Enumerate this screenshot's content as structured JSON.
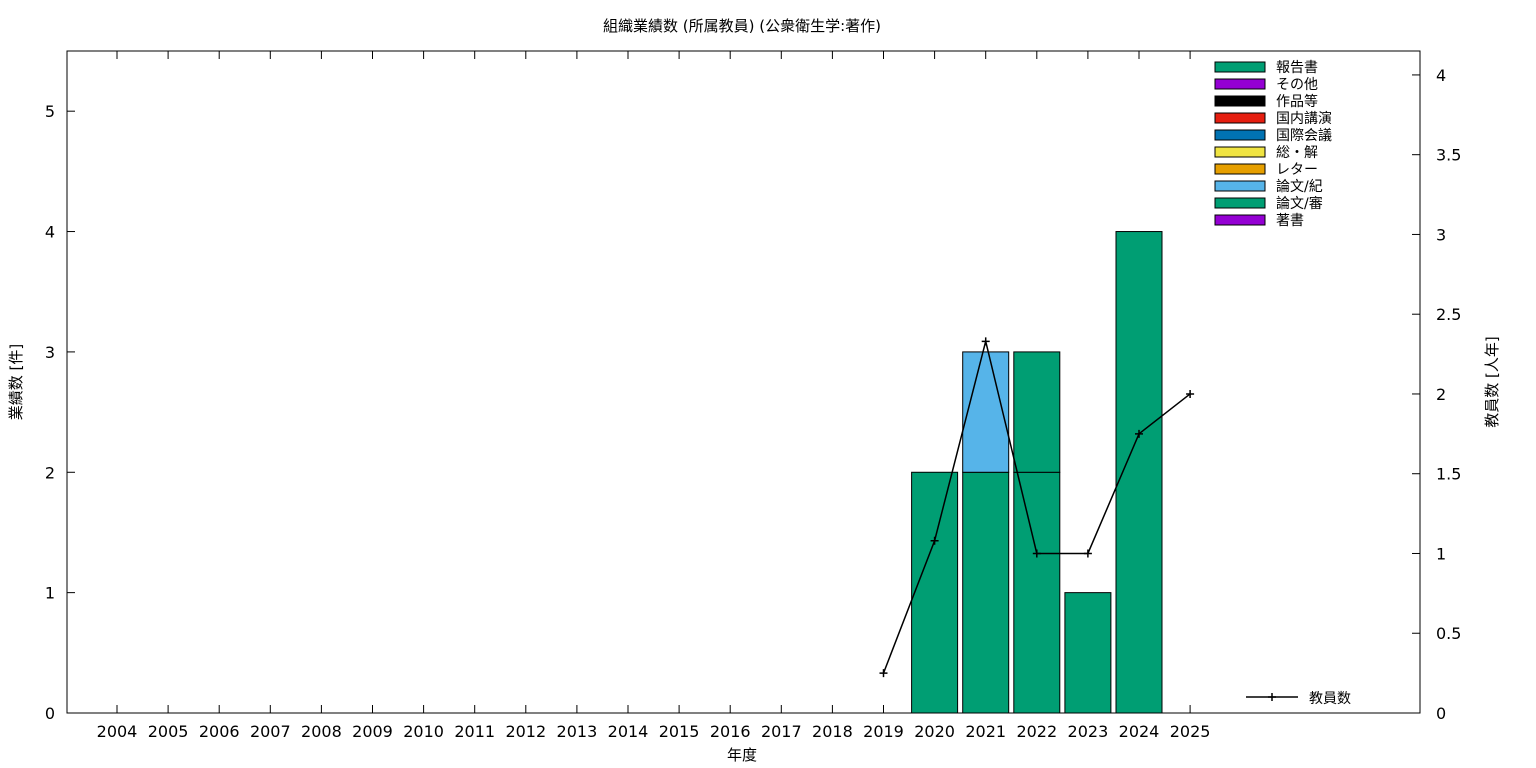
{
  "chart_data": {
    "type": "bar",
    "title": "組織業績数 (所属教員) (公衆衛生学:著作)",
    "xlabel": "年度",
    "ylabel": "業績数 [件]",
    "y2label": "教員数 [人年]",
    "categories": [
      "2004",
      "2005",
      "2006",
      "2007",
      "2008",
      "2009",
      "2010",
      "2011",
      "2012",
      "2013",
      "2014",
      "2015",
      "2016",
      "2017",
      "2018",
      "2019",
      "2020",
      "2021",
      "2022",
      "2023",
      "2024",
      "2025"
    ],
    "ylim": [
      0,
      5.5
    ],
    "yticks": [
      0,
      1,
      2,
      3,
      4,
      5
    ],
    "y2lim": [
      0,
      4.15
    ],
    "y2ticks": [
      "0",
      "0.5",
      "1",
      "1.5",
      "2",
      "2.5",
      "3",
      "3.5",
      "4"
    ],
    "stacked": true,
    "legend_position": "top-right",
    "series": [
      {
        "name": "論文/審",
        "color": "#009e73",
        "values": [
          0,
          0,
          0,
          0,
          0,
          0,
          0,
          0,
          0,
          0,
          0,
          0,
          0,
          0,
          0,
          0,
          2,
          2,
          2,
          1,
          4,
          0
        ]
      },
      {
        "name": "論文/紀",
        "color": "#56b4e9",
        "values": [
          0,
          0,
          0,
          0,
          0,
          0,
          0,
          0,
          0,
          0,
          0,
          0,
          0,
          0,
          0,
          0,
          0,
          1,
          0,
          0,
          0,
          0
        ]
      },
      {
        "name": "報告書",
        "color": "#009e73",
        "values": [
          0,
          0,
          0,
          0,
          0,
          0,
          0,
          0,
          0,
          0,
          0,
          0,
          0,
          0,
          0,
          0,
          0,
          0,
          1,
          0,
          0,
          0
        ]
      }
    ],
    "legend": [
      {
        "name": "報告書",
        "color": "#009e73"
      },
      {
        "name": "その他",
        "color": "#9400d3"
      },
      {
        "name": "作品等",
        "color": "#000000"
      },
      {
        "name": "国内講演",
        "color": "#e51e10"
      },
      {
        "name": "国際会議",
        "color": "#0072b2"
      },
      {
        "name": "総・解",
        "color": "#f0e442"
      },
      {
        "name": "レター",
        "color": "#e69f00"
      },
      {
        "name": "論文/紀",
        "color": "#56b4e9"
      },
      {
        "name": "論文/審",
        "color": "#009e73"
      },
      {
        "name": "著書",
        "color": "#9400d3"
      }
    ],
    "line_series": {
      "name": "教員数",
      "axis": "y2",
      "color": "#000000",
      "points": [
        {
          "x": "2019",
          "y": 0.25
        },
        {
          "x": "2020",
          "y": 1.08
        },
        {
          "x": "2021",
          "y": 2.33
        },
        {
          "x": "2022",
          "y": 1.0
        },
        {
          "x": "2023",
          "y": 1.0
        },
        {
          "x": "2024",
          "y": 1.75
        },
        {
          "x": "2025",
          "y": 2.0
        }
      ]
    }
  }
}
